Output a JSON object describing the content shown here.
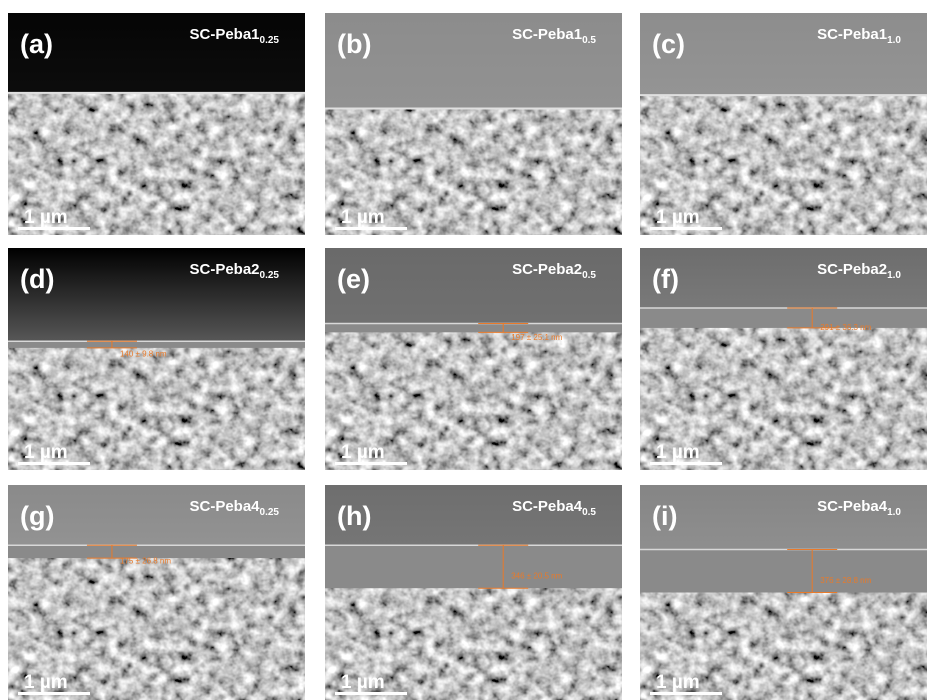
{
  "panels": [
    {
      "label": "(a)",
      "name": "SC-Peba1",
      "subscript": "0.25",
      "scale": "1 µm"
    },
    {
      "label": "(b)",
      "name": "SC-Peba1",
      "subscript": "0.5",
      "scale": "1 µm"
    },
    {
      "label": "(c)",
      "name": "SC-Peba1",
      "subscript": "1.0",
      "scale": "1 µm"
    },
    {
      "label": "(d)",
      "name": "SC-Peba2",
      "subscript": "0.25",
      "scale": "1 µm",
      "thickness": "140 ± 9.8 nm"
    },
    {
      "label": "(e)",
      "name": "SC-Peba2",
      "subscript": "0.5",
      "scale": "1 µm",
      "thickness": "197 ± 25.1 nm"
    },
    {
      "label": "(f)",
      "name": "SC-Peba2",
      "subscript": "1.0",
      "scale": "1 µm",
      "thickness": "291 ± 36.3 nm"
    },
    {
      "label": "(g)",
      "name": "SC-Peba4",
      "subscript": "0.25",
      "scale": "1 µm",
      "thickness": "175 ± 26.8 nm"
    },
    {
      "label": "(h)",
      "name": "SC-Peba4",
      "subscript": "0.5",
      "scale": "1 µm",
      "thickness": "346 ± 20.5 nm"
    },
    {
      "label": "(i)",
      "name": "SC-Peba4",
      "subscript": "1.0",
      "scale": "1 µm",
      "thickness": "376 ± 28.8 nm"
    }
  ]
}
